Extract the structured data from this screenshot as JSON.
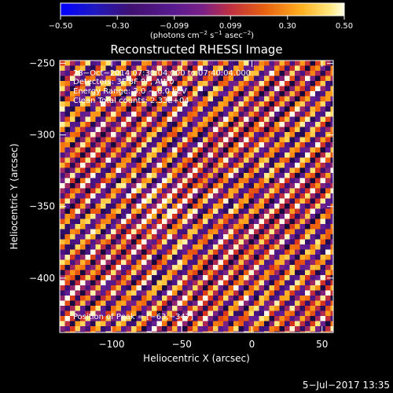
{
  "chart_data": {
    "type": "heatmap",
    "title": "Reconstructed RHESSI Image",
    "xlabel": "Heliocentric X (arcsec)",
    "ylabel": "Heliocentric Y (arcsec)",
    "xlim": [
      -137,
      58
    ],
    "ylim": [
      -438,
      -248
    ],
    "x_ticks": [
      -100,
      -50,
      0,
      50
    ],
    "x_tick_labels": [
      "−100",
      "−50",
      "0",
      "50"
    ],
    "y_ticks": [
      -250,
      -300,
      -350,
      -400
    ],
    "y_tick_labels": [
      "−250",
      "−300",
      "−350",
      "−400"
    ],
    "colorbar": {
      "range": [
        -0.5,
        0.5
      ],
      "ticks": [
        -0.5,
        -0.3,
        -0.099,
        0.099,
        0.3,
        0.5
      ],
      "tick_labels": [
        "−0.50",
        "−0.30",
        "−0.099",
        "0.099",
        "0.30",
        "0.50"
      ],
      "label_prefix": "(photons cm",
      "label_exp1": "−2",
      "label_mid": " s",
      "label_exp2": "−1",
      "label_mid2": " asec",
      "label_exp3": "−2",
      "label_suffix": ")"
    },
    "peak": {
      "x": -63,
      "y": -347
    },
    "stripe_angle_deg": 45
  },
  "annotations": {
    "line1": "23−Oct−2014 07:30:04.000 to 07:40:04.000",
    "line2": "Detectors: 3F 8F 9F, Att 0",
    "line3": "Energy Range: 3.0 − 6.0 keV",
    "line4": "Clean    Total counts: 2.33E+04",
    "peak_text": "Position of Peak = [−63,−347]"
  },
  "footer": {
    "timestamp": "5−Jul−2017 13:35"
  }
}
